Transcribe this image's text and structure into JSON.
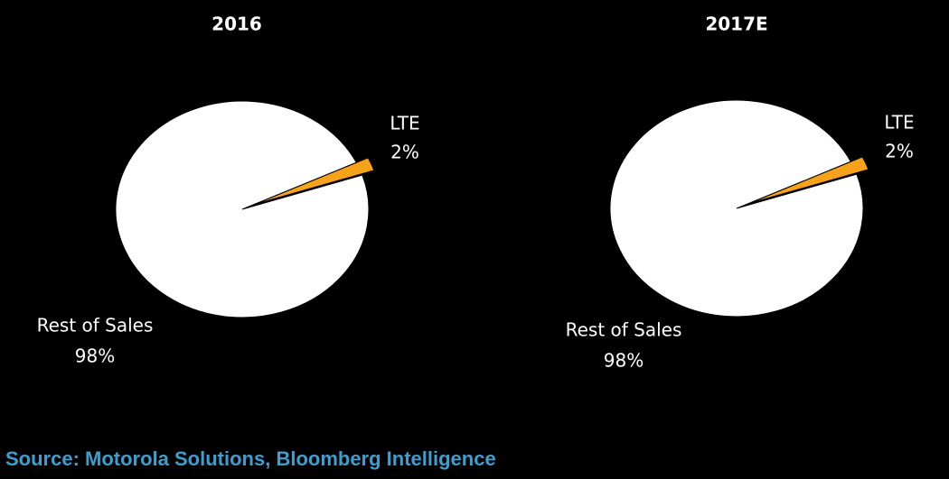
{
  "chart_data": [
    {
      "type": "pie",
      "title": "2016",
      "categories": [
        "LTE",
        "Rest of Sales"
      ],
      "values": [
        2,
        98
      ],
      "value_labels": [
        "2%",
        "98%"
      ],
      "colors": [
        "#f7a21b",
        "#ffffff"
      ]
    },
    {
      "type": "pie",
      "title": "2017E",
      "categories": [
        "LTE",
        "Rest of Sales"
      ],
      "values": [
        2,
        98
      ],
      "value_labels": [
        "2%",
        "98%"
      ],
      "colors": [
        "#f7a21b",
        "#ffffff"
      ]
    }
  ],
  "source": "Source: Motorola Solutions, Bloomberg Intelligence"
}
